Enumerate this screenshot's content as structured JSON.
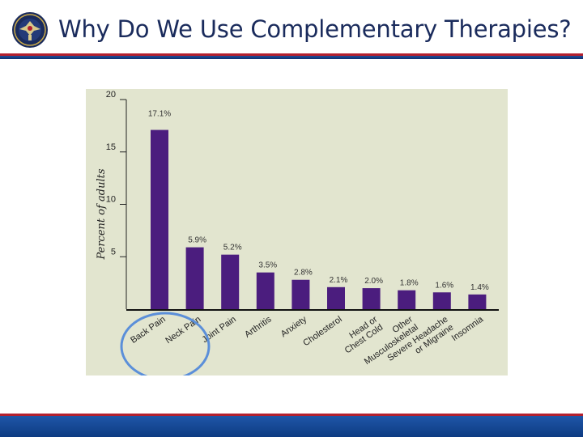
{
  "slide": {
    "title": "Why Do We Use Complementary Therapies?"
  },
  "colors": {
    "bar": "#4b1d7e",
    "plot_background": "#e2e5cf",
    "title": "#1a2b5c",
    "highlight_circle": "#5b8fd9"
  },
  "icons": {
    "seal": "department-seal-icon"
  },
  "chart_data": {
    "type": "bar",
    "title": "",
    "xlabel": "",
    "ylabel": "Percent of adults",
    "ylim": [
      0,
      20
    ],
    "yticks": [
      "20",
      "15",
      "10",
      "5"
    ],
    "grid": false,
    "categories": [
      [
        "Back Pain"
      ],
      [
        "Neck Pain"
      ],
      [
        "Joint Pain"
      ],
      [
        "Arthritis"
      ],
      [
        "Anxiety"
      ],
      [
        "Cholesterol"
      ],
      [
        "Head or",
        "Chest Cold"
      ],
      [
        "Other",
        "Musculoskeletal"
      ],
      [
        "Severe Headache",
        "or Migraine"
      ],
      [
        "Insomnia"
      ]
    ],
    "values": [
      17.1,
      5.9,
      5.2,
      3.5,
      2.8,
      2.1,
      2.0,
      1.8,
      1.6,
      1.4
    ],
    "value_labels": [
      "17.1%",
      "5.9%",
      "5.2%",
      "3.5%",
      "2.8%",
      "2.1%",
      "2.0%",
      "1.8%",
      "1.6%",
      "1.4%"
    ],
    "highlighted_categories": [
      "Back Pain",
      "Neck Pain"
    ]
  }
}
